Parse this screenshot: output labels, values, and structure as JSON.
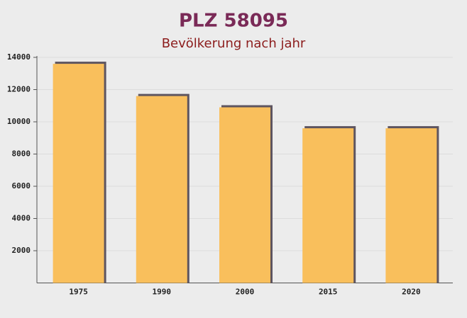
{
  "chart_data": {
    "type": "bar",
    "title": "PLZ 58095",
    "subtitle": "Bevölkerung nach jahr",
    "categories": [
      "1975",
      "1990",
      "2000",
      "2015",
      "2020"
    ],
    "values": [
      13600,
      11600,
      10900,
      9600,
      9600
    ],
    "color": "#f9bf5c",
    "ylim": [
      0,
      14000
    ],
    "yticks": [
      2000,
      4000,
      6000,
      8000,
      10000,
      12000,
      14000
    ],
    "grid": true
  }
}
